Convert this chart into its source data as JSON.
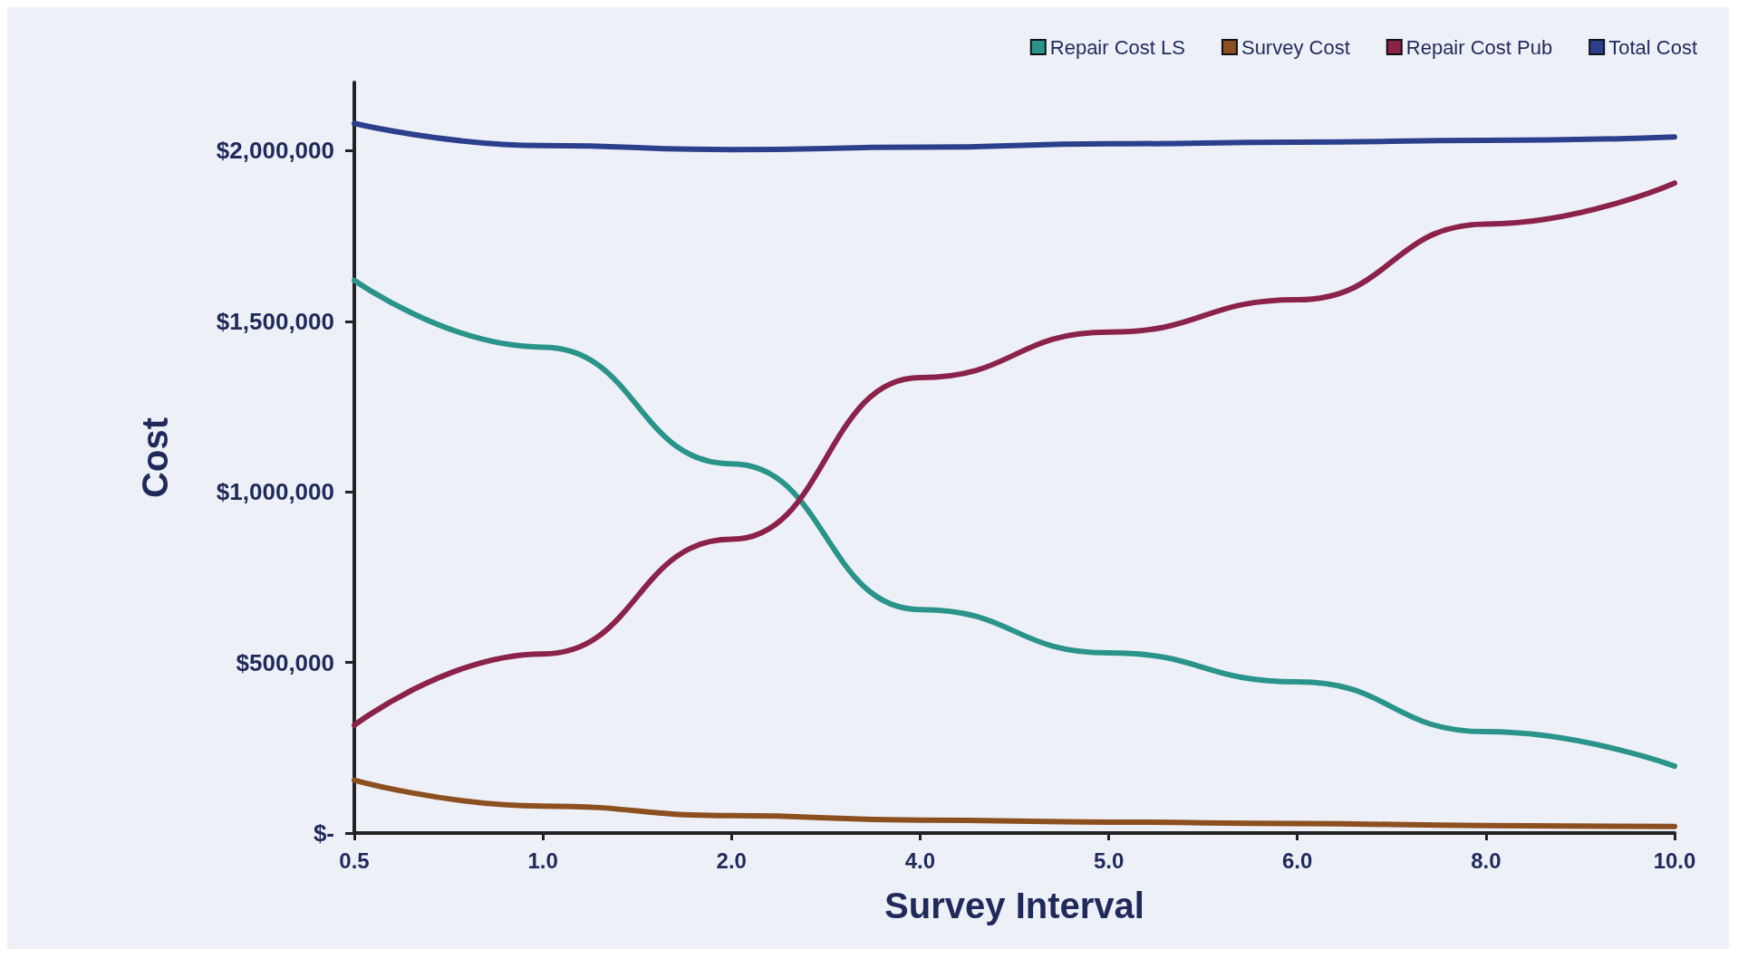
{
  "chart_data": {
    "type": "line",
    "xlabel": "Survey Interval",
    "ylabel": "Cost",
    "categories": [
      "0.5",
      "1.0",
      "2.0",
      "4.0",
      "5.0",
      "6.0",
      "8.0",
      "10.0"
    ],
    "series": [
      {
        "name": "Repair Cost LS",
        "color": "#2a948a",
        "values": [
          1620000,
          1424000,
          1082000,
          655000,
          528000,
          443000,
          297000,
          196000
        ]
      },
      {
        "name": "Survey Cost",
        "color": "#8c4f1f",
        "values": [
          155000,
          79000,
          51000,
          38000,
          32000,
          28000,
          22000,
          19000
        ]
      },
      {
        "name": "Repair Cost Pub",
        "color": "#8b2249",
        "values": [
          316000,
          525000,
          861000,
          1335000,
          1468000,
          1563000,
          1785000,
          1905000
        ]
      },
      {
        "name": "Total Cost",
        "color": "#2b3f8c",
        "values": [
          2080000,
          2015000,
          2003000,
          2010000,
          2020000,
          2025000,
          2030000,
          2040000
        ]
      }
    ],
    "ylim": [
      0,
      2200000
    ],
    "yticks": [
      {
        "value": 0,
        "label": "$-"
      },
      {
        "value": 500000,
        "label": "$500,000"
      },
      {
        "value": 1000000,
        "label": "$1,000,000"
      },
      {
        "value": 1500000,
        "label": "$1,500,000"
      },
      {
        "value": 2000000,
        "label": "$2,000,000"
      }
    ],
    "grid": false,
    "legend": "top right",
    "marker": "none",
    "line_style": "solid"
  }
}
